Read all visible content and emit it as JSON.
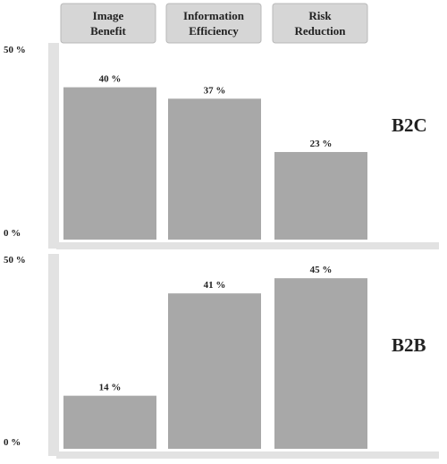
{
  "chart_data": {
    "type": "bar",
    "categories": [
      "Image\nBenefit",
      "Information\nEfficiency",
      "Risk\nReduction"
    ],
    "y_ticks": [
      "50 %",
      "0 %"
    ],
    "ylim": [
      0,
      50
    ],
    "value_suffix": " %",
    "panels": [
      {
        "label": "B2C",
        "values": [
          40,
          37,
          23
        ]
      },
      {
        "label": "B2B",
        "values": [
          14,
          41,
          45
        ]
      }
    ],
    "colors": {
      "bar": "#a8a8a8",
      "header": "#d6d6d6",
      "strip": "#e2e2e2"
    }
  }
}
